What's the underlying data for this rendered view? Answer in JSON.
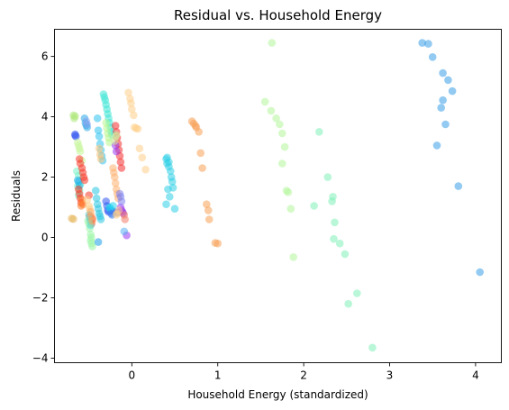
{
  "chart_data": {
    "type": "scatter",
    "title": "Residual vs. Household Energy",
    "xlabel": "Household Energy (standardized)",
    "ylabel": "Residuals",
    "xlim": [
      -0.9,
      4.3
    ],
    "ylim": [
      -4.15,
      6.9
    ],
    "xticks": [
      0,
      1,
      2,
      3,
      4
    ],
    "yticks": [
      -4,
      -2,
      0,
      2,
      4,
      6
    ],
    "grid": false,
    "legend": "none",
    "point_alpha": 0.55,
    "series": [
      {
        "color": "#e6b85c",
        "points": [
          [
            -0.7,
            0.63
          ],
          [
            -0.68,
            0.61
          ]
        ]
      },
      {
        "color": "#ade87a",
        "points": [
          [
            -0.68,
            4.05
          ],
          [
            -0.67,
            3.95
          ],
          [
            -0.66,
            4.02
          ]
        ]
      },
      {
        "color": "#3b5df0",
        "points": [
          [
            -0.66,
            3.42
          ],
          [
            -0.65,
            3.35
          ],
          [
            -0.66,
            3.38
          ]
        ]
      },
      {
        "color": "#78f2c8",
        "points": [
          [
            -0.64,
            2.2
          ],
          [
            -0.62,
            2.05
          ],
          [
            -0.63,
            1.7
          ],
          [
            -0.62,
            1.4
          ],
          [
            -0.61,
            1.55
          ],
          [
            -0.6,
            1.75
          ]
        ]
      },
      {
        "color": "#22b5e8",
        "points": [
          [
            -0.63,
            1.9
          ],
          [
            -0.62,
            1.85
          ],
          [
            -0.61,
            1.72
          ]
        ]
      },
      {
        "color": "#c6f59a",
        "points": [
          [
            -0.63,
            3.15
          ],
          [
            -0.62,
            3.05
          ],
          [
            -0.61,
            2.95
          ],
          [
            -0.6,
            2.85
          ],
          [
            -0.58,
            2.55
          ]
        ]
      },
      {
        "color": "#f53a2a",
        "points": [
          [
            -0.61,
            2.6
          ],
          [
            -0.6,
            2.45
          ],
          [
            -0.58,
            2.3
          ],
          [
            -0.57,
            2.15
          ],
          [
            -0.56,
            2.0
          ],
          [
            -0.55,
            1.9
          ],
          [
            -0.62,
            1.6
          ],
          [
            -0.61,
            1.45
          ],
          [
            -0.6,
            1.3
          ],
          [
            -0.59,
            1.15
          ],
          [
            -0.5,
            1.4
          ],
          [
            -0.49,
            0.7
          ],
          [
            -0.48,
            0.55
          ],
          [
            -0.47,
            0.45
          ],
          [
            -0.46,
            0.62
          ]
        ]
      },
      {
        "color": "#ff7a2a",
        "points": [
          [
            -0.59,
            1.05
          ],
          [
            -0.58,
            1.25
          ],
          [
            -0.57,
            1.1
          ]
        ]
      },
      {
        "color": "#2aa7e6",
        "points": [
          [
            -0.55,
            3.95
          ],
          [
            -0.54,
            3.8
          ],
          [
            -0.53,
            3.72
          ],
          [
            -0.52,
            3.65
          ]
        ]
      },
      {
        "color": "#8aa8f0",
        "points": [
          [
            -0.53,
            3.85
          ],
          [
            -0.52,
            3.75
          ]
        ]
      },
      {
        "color": "#ffd08a",
        "points": [
          [
            -0.52,
            1.25
          ],
          [
            -0.5,
            1.05
          ],
          [
            -0.49,
            0.95
          ]
        ]
      },
      {
        "color": "#9cf5a8",
        "points": [
          [
            -0.51,
            0.55
          ],
          [
            -0.5,
            0.45
          ],
          [
            -0.49,
            0.3
          ],
          [
            -0.48,
            0.1
          ],
          [
            -0.47,
            0.0
          ],
          [
            -0.48,
            -0.1
          ],
          [
            -0.47,
            -0.2
          ],
          [
            -0.46,
            -0.3
          ]
        ]
      },
      {
        "color": "#5ce0d8",
        "points": [
          [
            -0.5,
            0.75
          ],
          [
            -0.49,
            0.6
          ],
          [
            -0.48,
            0.4
          ]
        ]
      },
      {
        "color": "#ffa25c",
        "points": [
          [
            -0.48,
            0.85
          ],
          [
            -0.47,
            0.7
          ],
          [
            -0.46,
            0.55
          ]
        ]
      },
      {
        "color": "#29c7e0",
        "points": [
          [
            -0.42,
            1.55
          ],
          [
            -0.41,
            1.3
          ],
          [
            -0.4,
            1.1
          ],
          [
            -0.39,
            0.95
          ],
          [
            -0.38,
            0.8
          ],
          [
            -0.37,
            0.7
          ],
          [
            -0.36,
            0.6
          ]
        ]
      },
      {
        "color": "#2ec2ee",
        "points": [
          [
            -0.4,
            3.95
          ],
          [
            -0.39,
            3.55
          ],
          [
            -0.38,
            3.35
          ],
          [
            -0.37,
            3.1
          ],
          [
            -0.36,
            2.9
          ],
          [
            -0.35,
            2.7
          ],
          [
            -0.34,
            2.55
          ]
        ]
      },
      {
        "color": "#ffc47a",
        "points": [
          [
            -0.38,
            2.95
          ],
          [
            -0.37,
            2.75
          ],
          [
            -0.36,
            2.6
          ]
        ]
      },
      {
        "color": "#1e9ee8",
        "points": [
          [
            -0.39,
            -0.15
          ]
        ]
      },
      {
        "color": "#3ee6d6",
        "points": [
          [
            -0.33,
            4.75
          ],
          [
            -0.32,
            4.65
          ],
          [
            -0.31,
            4.55
          ],
          [
            -0.3,
            4.4
          ],
          [
            -0.29,
            4.25
          ],
          [
            -0.28,
            4.1
          ],
          [
            -0.27,
            3.95
          ],
          [
            -0.26,
            3.8
          ],
          [
            -0.25,
            3.65
          ],
          [
            -0.24,
            3.5
          ],
          [
            -0.23,
            3.4
          ]
        ]
      },
      {
        "color": "#b8f58e",
        "points": [
          [
            -0.3,
            3.8
          ],
          [
            -0.29,
            3.62
          ],
          [
            -0.28,
            3.45
          ],
          [
            -0.27,
            3.3
          ],
          [
            -0.26,
            3.15
          ]
        ]
      },
      {
        "color": "#3158f0",
        "points": [
          [
            -0.3,
            1.2
          ],
          [
            -0.29,
            1.05
          ],
          [
            -0.28,
            0.9
          ],
          [
            -0.27,
            0.85
          ],
          [
            -0.24,
            0.9
          ],
          [
            -0.2,
            0.85
          ],
          [
            -0.17,
            0.82
          ]
        ]
      },
      {
        "color": "#20d4f0",
        "points": [
          [
            -0.26,
            1.0
          ],
          [
            -0.25,
            0.95
          ],
          [
            -0.22,
            1.05
          ]
        ]
      },
      {
        "color": "#3f7ff0",
        "points": [
          [
            -0.24,
            0.8
          ],
          [
            -0.23,
            0.75
          ]
        ]
      },
      {
        "color": "#ffb070",
        "points": [
          [
            -0.22,
            2.3
          ],
          [
            -0.21,
            2.15
          ],
          [
            -0.2,
            2.0
          ],
          [
            -0.19,
            1.8
          ],
          [
            -0.18,
            1.6
          ],
          [
            -0.17,
            1.45
          ],
          [
            -0.16,
            1.3
          ]
        ]
      },
      {
        "color": "#f43030",
        "points": [
          [
            -0.19,
            3.7
          ],
          [
            -0.18,
            3.5
          ],
          [
            -0.17,
            3.3
          ],
          [
            -0.16,
            3.1
          ],
          [
            -0.15,
            2.9
          ],
          [
            -0.14,
            2.7
          ],
          [
            -0.13,
            2.5
          ],
          [
            -0.12,
            2.3
          ]
        ]
      },
      {
        "color": "#9a3af0",
        "points": [
          [
            -0.19,
            3.05
          ],
          [
            -0.18,
            2.85
          ],
          [
            -0.13,
            1.0
          ],
          [
            -0.12,
            0.9
          ],
          [
            -0.11,
            0.85
          ],
          [
            -0.1,
            0.8
          ],
          [
            -0.06,
            0.07
          ]
        ]
      },
      {
        "color": "#cfe8a0",
        "points": [
          [
            -0.2,
            3.2
          ],
          [
            -0.19,
            3.35
          ],
          [
            -0.18,
            3.4
          ]
        ]
      },
      {
        "color": "#7e82f0",
        "points": [
          [
            -0.14,
            1.45
          ],
          [
            -0.13,
            1.35
          ],
          [
            -0.12,
            1.2
          ]
        ]
      },
      {
        "color": "#ffcf8a",
        "points": [
          [
            -0.18,
            0.75
          ],
          [
            -0.17,
            0.8
          ],
          [
            -0.15,
            0.9
          ]
        ]
      },
      {
        "color": "#f07c6a",
        "points": [
          [
            -0.08,
            0.6
          ],
          [
            -0.09,
            0.75
          ]
        ]
      },
      {
        "color": "#5ab0f0",
        "points": [
          [
            -0.09,
            0.2
          ]
        ]
      },
      {
        "color": "#ffcf8a",
        "points": [
          [
            -0.04,
            4.8
          ],
          [
            -0.02,
            4.6
          ],
          [
            -0.01,
            4.45
          ],
          [
            0.0,
            4.25
          ],
          [
            0.02,
            4.05
          ],
          [
            0.03,
            3.65
          ],
          [
            0.05,
            3.62
          ],
          [
            0.07,
            3.6
          ],
          [
            0.09,
            2.95
          ],
          [
            0.12,
            2.65
          ],
          [
            0.16,
            2.25
          ]
        ]
      },
      {
        "color": "#2fd0e6",
        "points": [
          [
            0.4,
            2.6
          ],
          [
            0.41,
            2.45
          ],
          [
            0.43,
            2.35
          ],
          [
            0.45,
            2.2
          ],
          [
            0.46,
            2.0
          ],
          [
            0.47,
            1.85
          ],
          [
            0.4,
            1.1
          ],
          [
            0.42,
            1.6
          ],
          [
            0.44,
            1.35
          ],
          [
            0.48,
            1.65
          ],
          [
            0.5,
            0.95
          ],
          [
            0.41,
            2.65
          ],
          [
            0.43,
            2.5
          ]
        ]
      },
      {
        "color": "#f7a055",
        "points": [
          [
            0.7,
            3.85
          ],
          [
            0.72,
            3.78
          ],
          [
            0.74,
            3.7
          ],
          [
            0.75,
            3.65
          ],
          [
            0.78,
            3.5
          ],
          [
            0.8,
            2.8
          ],
          [
            0.82,
            2.3
          ],
          [
            0.87,
            1.1
          ],
          [
            0.89,
            0.9
          ],
          [
            0.9,
            0.6
          ],
          [
            0.97,
            -0.18
          ],
          [
            1.0,
            -0.2
          ]
        ]
      },
      {
        "color": "#b2f59a",
        "points": [
          [
            1.55,
            4.5
          ],
          [
            1.62,
            4.2
          ],
          [
            1.68,
            3.95
          ],
          [
            1.72,
            3.75
          ],
          [
            1.75,
            3.45
          ],
          [
            1.78,
            3.0
          ],
          [
            1.75,
            2.45
          ],
          [
            1.8,
            1.55
          ],
          [
            1.82,
            1.5
          ],
          [
            1.85,
            0.95
          ],
          [
            1.88,
            -0.65
          ],
          [
            1.63,
            6.45
          ]
        ]
      },
      {
        "color": "#7ff0b8",
        "points": [
          [
            2.18,
            3.5
          ],
          [
            2.12,
            1.05
          ],
          [
            2.28,
            2.0
          ],
          [
            2.34,
            1.35
          ],
          [
            2.33,
            1.2
          ],
          [
            2.36,
            0.5
          ],
          [
            2.35,
            -0.05
          ],
          [
            2.42,
            -0.2
          ],
          [
            2.48,
            -0.55
          ],
          [
            2.52,
            -2.2
          ],
          [
            2.62,
            -1.85
          ],
          [
            2.8,
            -3.65
          ]
        ]
      },
      {
        "color": "#3a9ee8",
        "points": [
          [
            3.38,
            6.45
          ],
          [
            3.45,
            6.42
          ],
          [
            3.5,
            5.98
          ],
          [
            3.62,
            5.45
          ],
          [
            3.68,
            5.22
          ],
          [
            3.73,
            4.85
          ],
          [
            3.62,
            4.55
          ],
          [
            3.6,
            4.3
          ],
          [
            3.65,
            3.75
          ],
          [
            3.55,
            3.05
          ],
          [
            3.8,
            1.7
          ],
          [
            4.05,
            -1.15
          ]
        ]
      }
    ]
  }
}
